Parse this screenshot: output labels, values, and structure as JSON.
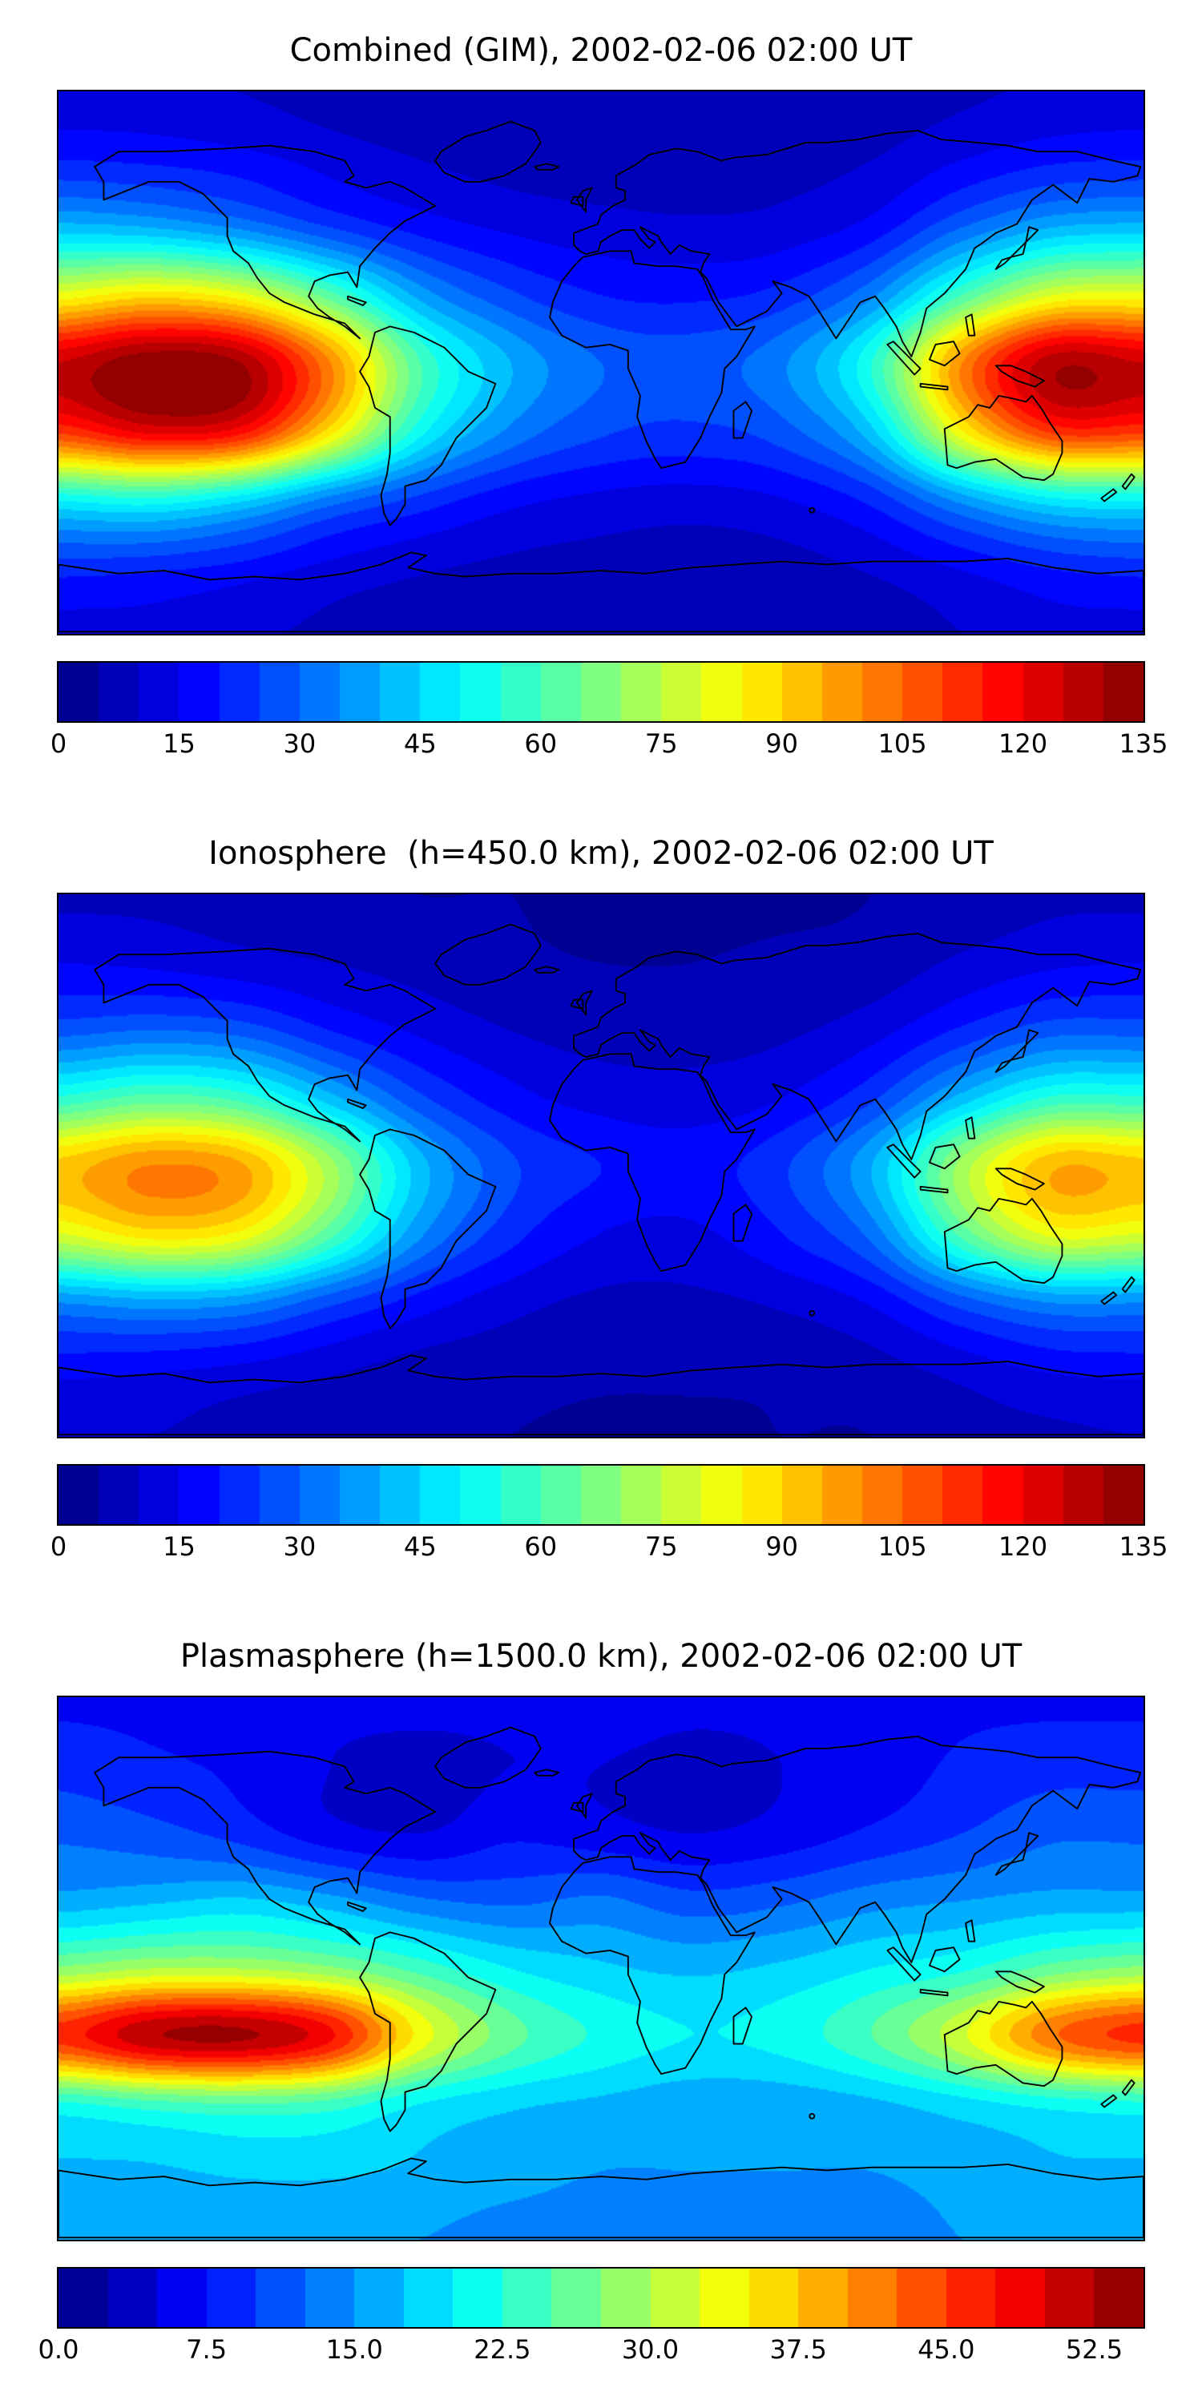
{
  "figure": {
    "background": "#ffffff",
    "coastline_color": "#000000",
    "frame_color": "#000000"
  },
  "chart_data": {
    "type": "heatmap",
    "projection": "equirectangular",
    "lon_range": [
      -180,
      180
    ],
    "lat_range": [
      -90,
      90
    ],
    "colormap": "jet",
    "grid_lats": [
      90,
      67.5,
      45,
      22.5,
      0,
      -22.5,
      -45,
      -67.5,
      -90
    ],
    "grid_lons": [
      -180,
      -150,
      -120,
      -90,
      -60,
      -30,
      0,
      30,
      60,
      90,
      120,
      150,
      180
    ],
    "maps": [
      {
        "id": "combined",
        "title": "Combined (GIM), 2002-02-06 02:00 UT",
        "vmin": 0,
        "vmax": 135,
        "contour_step": 5,
        "colorbar_ticks": [
          0,
          15,
          30,
          45,
          60,
          75,
          90,
          105,
          120,
          135
        ],
        "colorbar_tick_labels": [
          "0",
          "15",
          "30",
          "45",
          "60",
          "75",
          "90",
          "105",
          "120",
          "135"
        ],
        "values": [
          [
            12,
            12,
            10,
            8,
            7,
            6,
            6,
            5,
            6,
            7,
            9,
            11,
            12
          ],
          [
            20,
            19,
            17,
            13,
            10,
            8,
            7,
            7,
            8,
            10,
            15,
            19,
            20
          ],
          [
            42,
            40,
            34,
            25,
            18,
            14,
            12,
            11,
            12,
            17,
            30,
            40,
            42
          ],
          [
            82,
            88,
            82,
            62,
            38,
            26,
            20,
            19,
            22,
            34,
            60,
            80,
            82
          ],
          [
            125,
            134,
            130,
            100,
            60,
            40,
            30,
            28,
            34,
            55,
            100,
            128,
            125
          ],
          [
            112,
            122,
            118,
            88,
            52,
            34,
            26,
            24,
            28,
            44,
            85,
            112,
            112
          ],
          [
            52,
            55,
            48,
            34,
            24,
            17,
            14,
            13,
            15,
            22,
            38,
            50,
            52
          ],
          [
            23,
            22,
            19,
            14,
            11,
            9,
            8,
            7,
            8,
            11,
            16,
            21,
            23
          ],
          [
            13,
            13,
            11,
            9,
            8,
            6,
            6,
            6,
            6,
            7,
            10,
            13,
            13
          ]
        ]
      },
      {
        "id": "ionosphere",
        "title": "Ionosphere  (h=450.0 km), 2002-02-06 02:00 UT",
        "vmin": 0,
        "vmax": 135,
        "contour_step": 5,
        "colorbar_ticks": [
          0,
          15,
          30,
          45,
          60,
          75,
          90,
          105,
          120,
          135
        ],
        "colorbar_tick_labels": [
          "0",
          "15",
          "30",
          "45",
          "60",
          "75",
          "90",
          "105",
          "120",
          "135"
        ],
        "values": [
          [
            9,
            9,
            8,
            6,
            5,
            5,
            4,
            4,
            4,
            5,
            7,
            9,
            9
          ],
          [
            15,
            14,
            12,
            10,
            8,
            6,
            5,
            5,
            6,
            7,
            11,
            14,
            15
          ],
          [
            28,
            30,
            28,
            20,
            14,
            10,
            8,
            8,
            9,
            13,
            21,
            28,
            28
          ],
          [
            56,
            62,
            58,
            42,
            26,
            17,
            13,
            12,
            15,
            24,
            42,
            56,
            56
          ],
          [
            92,
            100,
            96,
            72,
            42,
            26,
            20,
            18,
            24,
            40,
            72,
            94,
            92
          ],
          [
            80,
            88,
            84,
            62,
            36,
            22,
            15,
            14,
            20,
            32,
            62,
            82,
            80
          ],
          [
            36,
            39,
            37,
            27,
            18,
            12,
            9,
            9,
            11,
            16,
            28,
            36,
            36
          ],
          [
            17,
            16,
            14,
            11,
            8,
            7,
            6,
            6,
            6,
            8,
            12,
            16,
            17
          ],
          [
            10,
            10,
            8,
            7,
            6,
            5,
            4,
            4,
            5,
            5,
            8,
            9,
            10
          ]
        ]
      },
      {
        "id": "plasmasphere",
        "title": "Plasmasphere (h=1500.0 km), 2002-02-06 02:00 UT",
        "vmin": 0,
        "vmax": 55,
        "contour_step": 2.5,
        "colorbar_ticks": [
          0,
          7.5,
          15,
          22.5,
          30,
          37.5,
          45,
          52.5
        ],
        "colorbar_tick_labels": [
          "0.0",
          "7.5",
          "15.0",
          "22.5",
          "30.0",
          "37.5",
          "45.0",
          "52.5"
        ],
        "values": [
          [
            7,
            7,
            7,
            6,
            6,
            6,
            7,
            6,
            6,
            7,
            7,
            7,
            7
          ],
          [
            9,
            8,
            7,
            5,
            4,
            5,
            5,
            4,
            5,
            6,
            8,
            9,
            9
          ],
          [
            12,
            11,
            9,
            6,
            5,
            7,
            6,
            5,
            6,
            8,
            10,
            12,
            12
          ],
          [
            16,
            17,
            18,
            16,
            13,
            12,
            13,
            11,
            12,
            14,
            15,
            16,
            16
          ],
          [
            28,
            30,
            30,
            28,
            24,
            20,
            18,
            17,
            18,
            20,
            22,
            26,
            28
          ],
          [
            46,
            52,
            53,
            48,
            34,
            26,
            22,
            20,
            21,
            25,
            32,
            42,
            46
          ],
          [
            22,
            24,
            25,
            24,
            20,
            18,
            17,
            16,
            16,
            17,
            19,
            21,
            22
          ],
          [
            17,
            17,
            18,
            18,
            17,
            16,
            15,
            15,
            15,
            15,
            16,
            17,
            17
          ],
          [
            15,
            15,
            15,
            15,
            15,
            14,
            14,
            14,
            14,
            14,
            15,
            15,
            15
          ]
        ]
      }
    ]
  }
}
